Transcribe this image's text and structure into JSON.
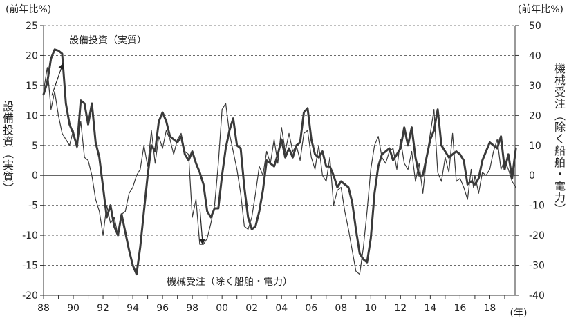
{
  "chart_data": {
    "type": "line",
    "left_unit": "(前年比%)",
    "right_unit": "(前年比%)",
    "ylabel_left": "設備投資（実質）",
    "ylabel_right": "機械受注（除く船舶・電力）",
    "x_unit": "(年)",
    "left_ylim": [
      -20,
      25
    ],
    "right_ylim": [
      -40,
      50
    ],
    "left_ticks": [
      25,
      20,
      15,
      10,
      5,
      0,
      -5,
      -10,
      -15,
      -20
    ],
    "right_ticks": [
      50,
      40,
      30,
      20,
      10,
      0,
      -10,
      -20,
      -30,
      -40
    ],
    "xlim": [
      1988,
      2019.7
    ],
    "xticks": [
      {
        "year": 1988,
        "label": "88"
      },
      {
        "year": 1990,
        "label": "90"
      },
      {
        "year": 1992,
        "label": "92"
      },
      {
        "year": 1994,
        "label": "94"
      },
      {
        "year": 1996,
        "label": "96"
      },
      {
        "year": 1998,
        "label": "98"
      },
      {
        "year": 2000,
        "label": "00"
      },
      {
        "year": 2002,
        "label": "02"
      },
      {
        "year": 2004,
        "label": "04"
      },
      {
        "year": 2006,
        "label": "06"
      },
      {
        "year": 2008,
        "label": "08"
      },
      {
        "year": 2010,
        "label": "10"
      },
      {
        "year": 2012,
        "label": "12"
      },
      {
        "year": 2014,
        "label": "14"
      },
      {
        "year": 2016,
        "label": "16"
      },
      {
        "year": 2018,
        "label": "18"
      }
    ],
    "gridlines": "dashed",
    "series": [
      {
        "name": "設備投資（実質）",
        "axis": "left",
        "style": "thick",
        "color": "#3a3a3a",
        "points": [
          [
            1988.0,
            13.5
          ],
          [
            1988.25,
            15.5
          ],
          [
            1988.5,
            19.5
          ],
          [
            1988.75,
            21.0
          ],
          [
            1989.0,
            20.8
          ],
          [
            1989.25,
            20.3
          ],
          [
            1989.5,
            12.0
          ],
          [
            1989.75,
            8.5
          ],
          [
            1990.0,
            7.0
          ],
          [
            1990.25,
            4.8
          ],
          [
            1990.5,
            12.5
          ],
          [
            1990.75,
            12.0
          ],
          [
            1991.0,
            8.5
          ],
          [
            1991.25,
            12.0
          ],
          [
            1991.5,
            5.5
          ],
          [
            1991.75,
            3.0
          ],
          [
            1992.0,
            -2.0
          ],
          [
            1992.25,
            -7.0
          ],
          [
            1992.5,
            -5.0
          ],
          [
            1992.75,
            -8.5
          ],
          [
            1993.0,
            -10.0
          ],
          [
            1993.25,
            -6.5
          ],
          [
            1993.5,
            -9.5
          ],
          [
            1993.75,
            -12.5
          ],
          [
            1994.0,
            -15.0
          ],
          [
            1994.25,
            -16.5
          ],
          [
            1994.5,
            -12.0
          ],
          [
            1994.75,
            -6.0
          ],
          [
            1995.0,
            0.0
          ],
          [
            1995.25,
            5.0
          ],
          [
            1995.5,
            4.0
          ],
          [
            1995.75,
            9.0
          ],
          [
            1996.0,
            10.5
          ],
          [
            1996.25,
            9.0
          ],
          [
            1996.5,
            6.5
          ],
          [
            1996.75,
            6.0
          ],
          [
            1997.0,
            5.5
          ],
          [
            1997.25,
            6.5
          ],
          [
            1997.5,
            3.5
          ],
          [
            1997.75,
            2.5
          ],
          [
            1998.0,
            4.0
          ],
          [
            1998.25,
            2.0
          ],
          [
            1998.5,
            0.5
          ],
          [
            1998.75,
            -1.5
          ],
          [
            1999.0,
            -6.0
          ],
          [
            1999.25,
            -7.0
          ],
          [
            1999.5,
            -5.5
          ],
          [
            1999.75,
            -5.5
          ],
          [
            2000.0,
            0.0
          ],
          [
            2000.25,
            4.5
          ],
          [
            2000.5,
            7.5
          ],
          [
            2000.75,
            9.5
          ],
          [
            2001.0,
            5.0
          ],
          [
            2001.25,
            4.5
          ],
          [
            2001.5,
            -2.0
          ],
          [
            2001.75,
            -7.0
          ],
          [
            2002.0,
            -9.0
          ],
          [
            2002.25,
            -8.5
          ],
          [
            2002.5,
            -6.0
          ],
          [
            2002.75,
            -2.5
          ],
          [
            2003.0,
            2.5
          ],
          [
            2003.25,
            2.0
          ],
          [
            2003.5,
            1.5
          ],
          [
            2003.75,
            3.5
          ],
          [
            2004.0,
            6.0
          ],
          [
            2004.25,
            3.0
          ],
          [
            2004.5,
            4.5
          ],
          [
            2004.75,
            3.0
          ],
          [
            2005.0,
            5.0
          ],
          [
            2005.25,
            5.5
          ],
          [
            2005.5,
            10.5
          ],
          [
            2005.75,
            11.2
          ],
          [
            2006.0,
            6.0
          ],
          [
            2006.25,
            3.5
          ],
          [
            2006.5,
            3.0
          ],
          [
            2006.75,
            4.0
          ],
          [
            2007.0,
            1.5
          ],
          [
            2007.25,
            1.5
          ],
          [
            2007.5,
            0.0
          ],
          [
            2007.75,
            -2.0
          ],
          [
            2008.0,
            -1.0
          ],
          [
            2008.25,
            -1.5
          ],
          [
            2008.5,
            -2.0
          ],
          [
            2008.75,
            -4.5
          ],
          [
            2009.0,
            -9.0
          ],
          [
            2009.25,
            -13.0
          ],
          [
            2009.5,
            -14.0
          ],
          [
            2009.75,
            -14.5
          ],
          [
            2010.0,
            -10.5
          ],
          [
            2010.25,
            -3.0
          ],
          [
            2010.5,
            1.5
          ],
          [
            2010.75,
            3.5
          ],
          [
            2011.0,
            4.0
          ],
          [
            2011.25,
            4.5
          ],
          [
            2011.5,
            2.5
          ],
          [
            2011.75,
            3.5
          ],
          [
            2012.0,
            4.5
          ],
          [
            2012.25,
            8.0
          ],
          [
            2012.5,
            5.0
          ],
          [
            2012.75,
            8.0
          ],
          [
            2013.0,
            3.0
          ],
          [
            2013.25,
            0.0
          ],
          [
            2013.5,
            0.0
          ],
          [
            2013.75,
            3.0
          ],
          [
            2014.0,
            6.0
          ],
          [
            2014.25,
            7.5
          ],
          [
            2014.5,
            11.0
          ],
          [
            2014.75,
            5.0
          ],
          [
            2015.0,
            4.0
          ],
          [
            2015.25,
            3.0
          ],
          [
            2015.5,
            3.5
          ],
          [
            2015.75,
            4.0
          ],
          [
            2016.0,
            3.5
          ],
          [
            2016.25,
            2.5
          ],
          [
            2016.5,
            -1.5
          ],
          [
            2016.75,
            -1.0
          ],
          [
            2017.0,
            -1.5
          ],
          [
            2017.25,
            -0.5
          ],
          [
            2017.5,
            2.5
          ],
          [
            2017.75,
            4.0
          ],
          [
            2018.0,
            5.5
          ],
          [
            2018.25,
            5.0
          ],
          [
            2018.5,
            4.5
          ],
          [
            2018.75,
            6.5
          ],
          [
            2019.0,
            1.0
          ],
          [
            2019.25,
            3.5
          ],
          [
            2019.5,
            -0.5
          ],
          [
            2019.75,
            4.5
          ]
        ]
      },
      {
        "name": "機械受注（除く船舶・電力）",
        "axis": "right",
        "style": "thin",
        "color": "#3a3a3a",
        "points": [
          [
            1988.0,
            28.0
          ],
          [
            1988.25,
            36.0
          ],
          [
            1988.5,
            22.0
          ],
          [
            1988.75,
            28.0
          ],
          [
            1989.0,
            20.0
          ],
          [
            1989.25,
            14.0
          ],
          [
            1989.5,
            12.0
          ],
          [
            1989.75,
            10.0
          ],
          [
            1990.0,
            15.0
          ],
          [
            1990.25,
            9.0
          ],
          [
            1990.5,
            18.0
          ],
          [
            1990.75,
            6.0
          ],
          [
            1991.0,
            5.0
          ],
          [
            1991.25,
            0.0
          ],
          [
            1991.5,
            -8.0
          ],
          [
            1991.75,
            -12.0
          ],
          [
            1992.0,
            -20.0
          ],
          [
            1992.25,
            -10.0
          ],
          [
            1992.5,
            -16.0
          ],
          [
            1992.75,
            -14.0
          ],
          [
            1993.0,
            -20.0
          ],
          [
            1993.25,
            -13.0
          ],
          [
            1993.5,
            -12.0
          ],
          [
            1993.75,
            -6.0
          ],
          [
            1994.0,
            -4.0
          ],
          [
            1994.25,
            0.0
          ],
          [
            1994.5,
            2.0
          ],
          [
            1994.75,
            10.0
          ],
          [
            1995.0,
            3.0
          ],
          [
            1995.25,
            15.0
          ],
          [
            1995.5,
            4.0
          ],
          [
            1995.75,
            13.0
          ],
          [
            1996.0,
            9.0
          ],
          [
            1996.25,
            15.0
          ],
          [
            1996.5,
            12.0
          ],
          [
            1996.75,
            7.0
          ],
          [
            1997.0,
            12.0
          ],
          [
            1997.25,
            14.0
          ],
          [
            1997.5,
            8.0
          ],
          [
            1997.75,
            7.0
          ],
          [
            1998.0,
            -14.0
          ],
          [
            1998.25,
            -8.0
          ],
          [
            1998.5,
            -23.0
          ],
          [
            1998.75,
            -23.0
          ],
          [
            1999.0,
            -21.0
          ],
          [
            1999.25,
            -16.0
          ],
          [
            1999.5,
            -10.0
          ],
          [
            1999.75,
            4.0
          ],
          [
            2000.0,
            22.0
          ],
          [
            2000.25,
            24.0
          ],
          [
            2000.5,
            14.0
          ],
          [
            2000.75,
            8.0
          ],
          [
            2001.0,
            2.0
          ],
          [
            2001.25,
            -6.0
          ],
          [
            2001.5,
            -17.0
          ],
          [
            2001.75,
            -18.0
          ],
          [
            2002.0,
            -14.0
          ],
          [
            2002.25,
            -6.0
          ],
          [
            2002.5,
            3.0
          ],
          [
            2002.75,
            0.0
          ],
          [
            2003.0,
            8.0
          ],
          [
            2003.25,
            4.0
          ],
          [
            2003.5,
            12.0
          ],
          [
            2003.75,
            4.0
          ],
          [
            2004.0,
            16.0
          ],
          [
            2004.25,
            8.0
          ],
          [
            2004.5,
            14.0
          ],
          [
            2004.75,
            8.0
          ],
          [
            2005.0,
            10.0
          ],
          [
            2005.25,
            5.0
          ],
          [
            2005.5,
            14.0
          ],
          [
            2005.75,
            15.0
          ],
          [
            2006.0,
            6.0
          ],
          [
            2006.25,
            2.0
          ],
          [
            2006.5,
            10.0
          ],
          [
            2006.75,
            0.0
          ],
          [
            2007.0,
            -2.0
          ],
          [
            2007.25,
            6.0
          ],
          [
            2007.5,
            -10.0
          ],
          [
            2007.75,
            -5.0
          ],
          [
            2008.0,
            -4.0
          ],
          [
            2008.25,
            -12.0
          ],
          [
            2008.5,
            -18.0
          ],
          [
            2008.75,
            -25.0
          ],
          [
            2009.0,
            -32.0
          ],
          [
            2009.25,
            -33.0
          ],
          [
            2009.5,
            -24.0
          ],
          [
            2009.75,
            -12.0
          ],
          [
            2010.0,
            2.0
          ],
          [
            2010.25,
            10.0
          ],
          [
            2010.5,
            13.0
          ],
          [
            2010.75,
            6.0
          ],
          [
            2011.0,
            4.0
          ],
          [
            2011.25,
            8.0
          ],
          [
            2011.5,
            9.0
          ],
          [
            2011.75,
            2.0
          ],
          [
            2012.0,
            12.0
          ],
          [
            2012.25,
            4.0
          ],
          [
            2012.5,
            2.0
          ],
          [
            2012.75,
            8.0
          ],
          [
            2013.0,
            -2.0
          ],
          [
            2013.25,
            4.0
          ],
          [
            2013.5,
            -6.0
          ],
          [
            2013.75,
            6.0
          ],
          [
            2014.0,
            14.0
          ],
          [
            2014.25,
            22.0
          ],
          [
            2014.5,
            1.0
          ],
          [
            2014.75,
            -2.0
          ],
          [
            2015.0,
            6.0
          ],
          [
            2015.25,
            1.0
          ],
          [
            2015.5,
            14.0
          ],
          [
            2015.75,
            -2.0
          ],
          [
            2016.0,
            -1.0
          ],
          [
            2016.25,
            -4.0
          ],
          [
            2016.5,
            -8.0
          ],
          [
            2016.75,
            2.0
          ],
          [
            2016.9,
            -4.0
          ],
          [
            2017.0,
            0.0
          ],
          [
            2017.25,
            -6.0
          ],
          [
            2017.5,
            1.0
          ],
          [
            2017.75,
            0.0
          ],
          [
            2018.0,
            2.0
          ],
          [
            2018.25,
            8.0
          ],
          [
            2018.5,
            12.0
          ],
          [
            2018.75,
            2.0
          ],
          [
            2019.0,
            5.0
          ],
          [
            2019.25,
            2.0
          ],
          [
            2019.5,
            -2.0
          ],
          [
            2019.75,
            -4.0
          ]
        ]
      }
    ],
    "annotations": [
      {
        "text": "設備投資（実質）",
        "series": 0,
        "year": 1989.3
      },
      {
        "text": "機械受注（除く船舶・電力）",
        "series": 1,
        "year": 1998.7
      }
    ]
  }
}
